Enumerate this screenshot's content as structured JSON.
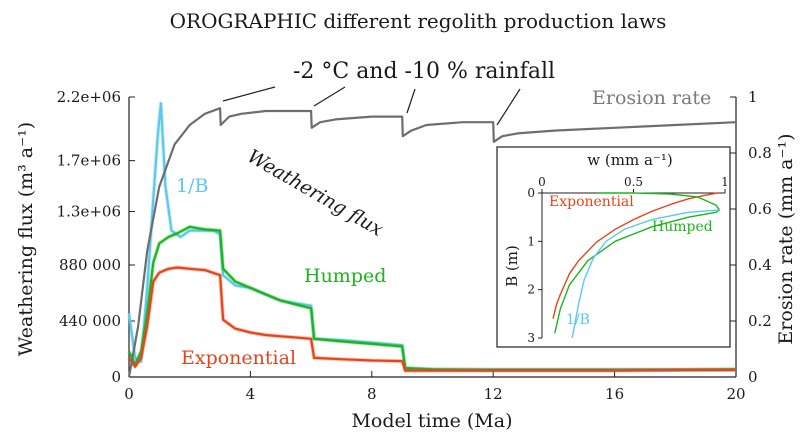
{
  "chart_data": [
    {
      "type": "line",
      "title": "OROGRAPHIC different regolith production laws",
      "xlabel": "Model time (Ma)",
      "ylabel": "Weathering flux (m³ a⁻¹)",
      "y2label": "Erosion rate (mm a⁻¹)",
      "xlim": [
        0,
        20
      ],
      "ylim": [
        0,
        2200000
      ],
      "y2lim": [
        0,
        1
      ],
      "xticks": [
        "0",
        "4",
        "8",
        "12",
        "16",
        "20"
      ],
      "yticks": [
        {
          "v": 0,
          "label": "0"
        },
        {
          "v": 440000,
          "label": "440 000"
        },
        {
          "v": 880000,
          "label": "880 000"
        },
        {
          "v": 1300000,
          "label": "1.3e+06"
        },
        {
          "v": 1700000,
          "label": "1.7e+06"
        },
        {
          "v": 2200000,
          "label": "2.2e+06"
        }
      ],
      "y2ticks": [
        "0",
        "0.2",
        "0.4",
        "0.6",
        "0.8",
        "1"
      ],
      "annotations": {
        "climate_step": "-2 °C and -10 % rainfall",
        "weathering_flux": "Weathering flux"
      },
      "series": [
        {
          "name": "1/B",
          "axis": "left",
          "color": "#5bc8f0",
          "x": [
            0,
            0.2,
            0.4,
            0.6,
            0.8,
            0.95,
            1.05,
            1.2,
            1.4,
            1.7,
            2.0,
            2.4,
            2.8,
            3.0,
            3.1,
            3.5,
            4.0,
            4.5,
            5.0,
            5.5,
            6.0,
            6.1,
            7.0,
            8.0,
            9.0,
            9.1,
            10,
            12,
            14,
            16,
            18,
            20
          ],
          "values": [
            500000,
            150000,
            120000,
            700000,
            1400000,
            1900000,
            2150000,
            1500000,
            1150000,
            1100000,
            1150000,
            1150000,
            1150000,
            1120000,
            800000,
            720000,
            700000,
            650000,
            600000,
            580000,
            560000,
            300000,
            290000,
            270000,
            250000,
            70000,
            60000,
            60000,
            60000,
            60000,
            60000,
            60000
          ]
        },
        {
          "name": "Humped",
          "axis": "left",
          "color": "#1eb41e",
          "x": [
            0,
            0.2,
            0.4,
            0.6,
            0.8,
            1.0,
            1.3,
            1.6,
            2.0,
            2.5,
            3.0,
            3.1,
            3.5,
            4.0,
            4.5,
            5.0,
            5.5,
            6.0,
            6.1,
            7.0,
            8.0,
            9.0,
            9.1,
            10,
            12,
            14,
            16,
            18,
            20
          ],
          "values": [
            200000,
            100000,
            200000,
            500000,
            900000,
            1050000,
            1100000,
            1130000,
            1180000,
            1160000,
            1150000,
            850000,
            750000,
            700000,
            650000,
            600000,
            570000,
            540000,
            300000,
            280000,
            260000,
            240000,
            70000,
            60000,
            55000,
            55000,
            55000,
            55000,
            60000
          ]
        },
        {
          "name": "Exponential",
          "axis": "left",
          "color": "#e8441c",
          "x": [
            0,
            0.2,
            0.4,
            0.6,
            0.8,
            1.0,
            1.3,
            1.6,
            2.0,
            2.5,
            3.0,
            3.1,
            3.5,
            4.0,
            4.5,
            5.0,
            5.5,
            6.0,
            6.1,
            7.0,
            8.0,
            9.0,
            9.1,
            10,
            12,
            14,
            16,
            18,
            20
          ],
          "values": [
            150000,
            80000,
            150000,
            400000,
            750000,
            820000,
            850000,
            860000,
            850000,
            840000,
            800000,
            450000,
            380000,
            350000,
            330000,
            320000,
            310000,
            300000,
            150000,
            140000,
            130000,
            125000,
            50000,
            50000,
            50000,
            50000,
            50000,
            55000,
            55000
          ]
        },
        {
          "name": "Erosion rate",
          "axis": "right",
          "color": "#6e6e6e",
          "x": [
            0,
            0.3,
            0.6,
            1.0,
            1.5,
            2.0,
            2.5,
            3.0,
            3.02,
            3.3,
            3.7,
            4.5,
            5.5,
            6.0,
            6.02,
            6.3,
            6.8,
            8.0,
            9.0,
            9.02,
            9.3,
            9.8,
            11,
            12.0,
            12.02,
            12.3,
            12.8,
            14,
            16,
            18,
            20
          ],
          "values": [
            0,
            0.18,
            0.45,
            0.68,
            0.83,
            0.9,
            0.94,
            0.96,
            0.9,
            0.93,
            0.94,
            0.95,
            0.95,
            0.95,
            0.89,
            0.91,
            0.92,
            0.93,
            0.93,
            0.86,
            0.88,
            0.9,
            0.91,
            0.91,
            0.84,
            0.86,
            0.87,
            0.88,
            0.89,
            0.9,
            0.91
          ]
        }
      ]
    },
    {
      "type": "line",
      "xlabel": "w (mm a⁻¹)",
      "ylabel": "B (m)",
      "xlim": [
        0,
        1
      ],
      "ylim": [
        0,
        3
      ],
      "xticks": [
        "0",
        "0.5",
        "1"
      ],
      "yticks": [
        "0",
        "1",
        "2",
        "3"
      ],
      "series": [
        {
          "name": "Exponential",
          "color": "#e8441c",
          "x": [
            0.96,
            0.9,
            0.8,
            0.7,
            0.6,
            0.5,
            0.4,
            0.3,
            0.2,
            0.15,
            0.1,
            0.08,
            0.06
          ],
          "values": [
            0,
            0.04,
            0.12,
            0.24,
            0.38,
            0.55,
            0.75,
            1.01,
            1.4,
            1.67,
            2.1,
            2.3,
            2.6
          ]
        },
        {
          "name": "Humped",
          "color": "#1eb41e",
          "x": [
            0.3,
            0.5,
            0.7,
            0.85,
            0.95,
            0.97,
            0.95,
            0.8,
            0.6,
            0.4,
            0.25,
            0.15,
            0.1,
            0.07
          ],
          "values": [
            0,
            0.0,
            0.02,
            0.08,
            0.25,
            0.35,
            0.4,
            0.5,
            0.7,
            1.0,
            1.4,
            1.9,
            2.4,
            2.9
          ]
        },
        {
          "name": "1/B",
          "color": "#5bc8f0",
          "x": [
            0.97,
            0.8,
            0.6,
            0.45,
            0.35,
            0.28,
            0.23,
            0.2,
            0.18,
            0.165
          ],
          "values": [
            0.35,
            0.4,
            0.55,
            0.75,
            1.0,
            1.35,
            1.8,
            2.3,
            2.7,
            3.0
          ]
        }
      ]
    }
  ]
}
